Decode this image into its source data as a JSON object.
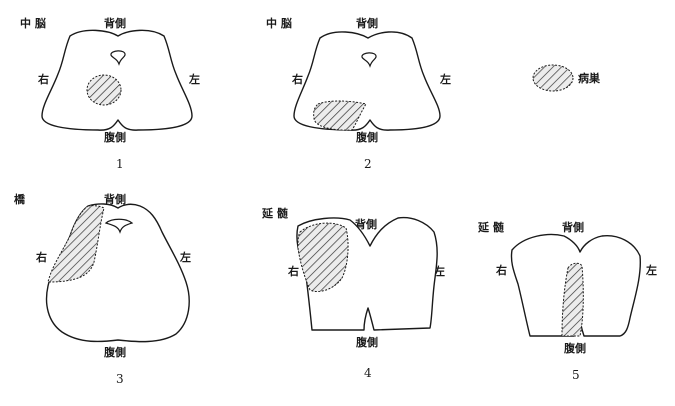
{
  "legend": {
    "label": "病巣"
  },
  "panels": [
    {
      "number": "1",
      "region": "中 脳",
      "dorsal": "背側",
      "ventral": "腹側",
      "right": "右",
      "left": "左"
    },
    {
      "number": "2",
      "region": "中 脳",
      "dorsal": "背側",
      "ventral": "腹側",
      "right": "右",
      "left": "左"
    },
    {
      "number": "3",
      "region": "橋",
      "dorsal": "背側",
      "ventral": "腹側",
      "right": "右",
      "left": "左"
    },
    {
      "number": "4",
      "region": "延 髄",
      "dorsal": "背側",
      "ventral": "腹側",
      "right": "右",
      "left": "左"
    },
    {
      "number": "5",
      "region": "延 髄",
      "dorsal": "背側",
      "ventral": "腹側",
      "right": "右",
      "left": "左"
    }
  ]
}
